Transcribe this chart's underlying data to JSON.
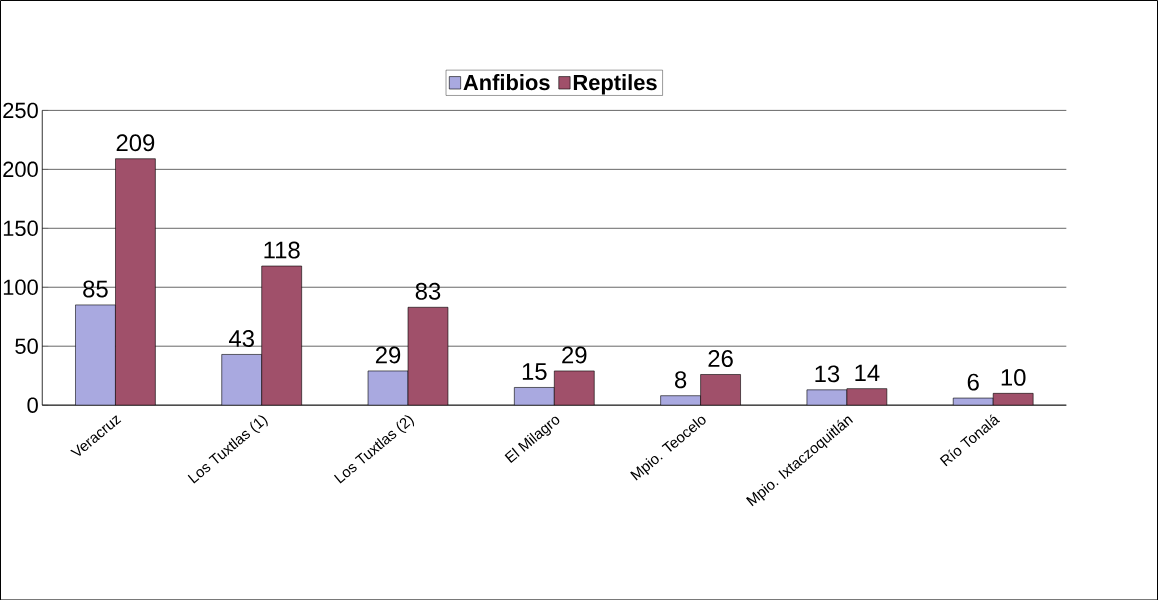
{
  "chart_data": {
    "type": "bar",
    "categories": [
      "Veracruz",
      "Los Tuxtlas (1)",
      "Los Tuxtlas (2)",
      "El Milagro",
      "Mpio. Teocelo",
      "Mpio. Ixtaczoquitlán",
      "Río Tonalá"
    ],
    "series": [
      {
        "name": "Anfibios",
        "color": "#a9a9e0",
        "values": [
          85,
          43,
          29,
          15,
          8,
          13,
          6
        ]
      },
      {
        "name": "Reptiles",
        "color": "#a0506a",
        "values": [
          209,
          118,
          83,
          29,
          26,
          14,
          10
        ]
      }
    ],
    "ylim": [
      0,
      250
    ],
    "yticks": [
      0,
      50,
      100,
      150,
      200,
      250
    ],
    "grid": "y",
    "legend": "top",
    "data_labels": true
  }
}
